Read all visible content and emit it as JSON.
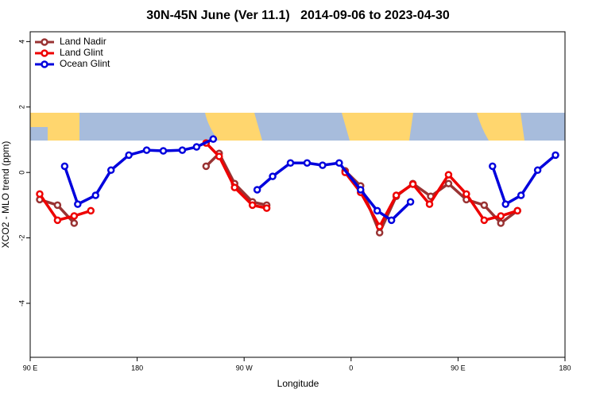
{
  "chart_data": {
    "type": "line",
    "title": "30N-45N June (Ver 11.1)   2014-09-06 to 2023-04-30",
    "xlabel": "Longitude",
    "ylabel": "XCO2 - MLO trend (ppm)",
    "xlim": [
      90,
      540
    ],
    "ylim": [
      -5.65,
      4.3
    ],
    "xticks": [
      {
        "value": 90,
        "label": "90 E"
      },
      180,
      {
        "value": 270,
        "label": "90 W"
      },
      {
        "value": 360,
        "label": "0"
      },
      {
        "value": 450,
        "label": "90 E"
      },
      {
        "value": 540,
        "label": "180"
      }
    ],
    "yticks": [
      4,
      2,
      0,
      -2,
      -4
    ],
    "legend": "upper left",
    "series": [
      {
        "name": "Land Nadir",
        "color": "#993333",
        "x": [
          98,
          113,
          127,
          null,
          238,
          249,
          262,
          277,
          289,
          null,
          355,
          368,
          384,
          398,
          412,
          427,
          442,
          457,
          472,
          486,
          500
        ],
        "values": [
          -0.83,
          -1.0,
          -1.55,
          null,
          0.19,
          0.58,
          -0.34,
          -0.9,
          -1.0,
          null,
          0.05,
          -0.41,
          -1.84,
          -0.73,
          -0.34,
          -0.73,
          -0.34,
          -0.83,
          -1.0,
          -1.55,
          -1.17
        ]
      },
      {
        "name": "Land Glint",
        "color": "#ee0000",
        "x": [
          98,
          113,
          127,
          141,
          null,
          238,
          249,
          262,
          277,
          289,
          null,
          355,
          368,
          384,
          398,
          412,
          426,
          442,
          457,
          472,
          486,
          500
        ],
        "values": [
          -0.66,
          -1.46,
          -1.33,
          -1.17,
          null,
          0.9,
          0.49,
          -0.46,
          -1.0,
          -1.09,
          null,
          0.0,
          -0.61,
          -1.65,
          -0.7,
          -0.36,
          -0.97,
          -0.07,
          -0.66,
          -1.46,
          -1.33,
          -1.17
        ]
      },
      {
        "name": "Ocean Glint",
        "color": "#0000dd",
        "x": [
          119,
          130,
          145,
          158,
          173,
          188,
          202,
          218,
          230,
          244,
          null,
          281,
          294,
          309,
          323,
          336,
          350,
          368,
          382,
          394,
          410,
          null,
          479,
          490,
          503,
          517,
          532
        ],
        "values": [
          0.19,
          -0.97,
          -0.7,
          0.07,
          0.53,
          0.68,
          0.66,
          0.68,
          0.78,
          1.02,
          null,
          -0.53,
          -0.12,
          0.29,
          0.29,
          0.22,
          0.29,
          -0.53,
          -1.17,
          -1.46,
          -0.9,
          null,
          0.19,
          -0.97,
          -0.7,
          0.07,
          0.53
        ]
      }
    ]
  }
}
